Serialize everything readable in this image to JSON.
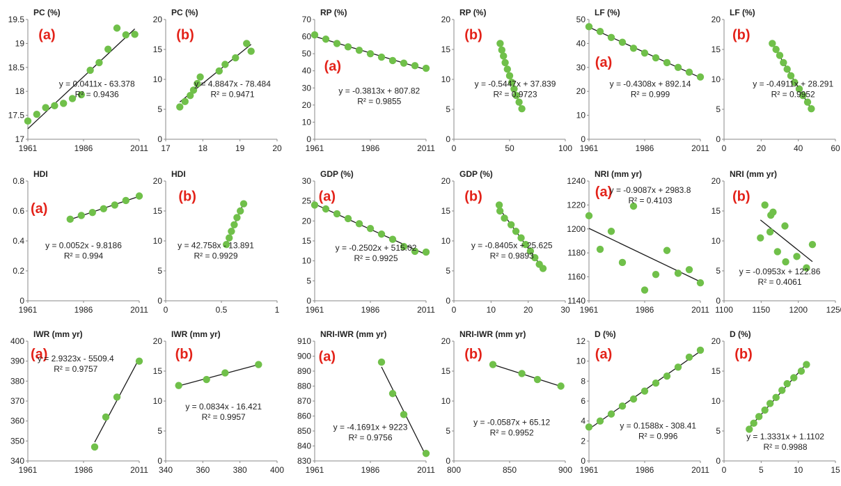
{
  "style": {
    "point_color": "#70c04a",
    "line_color": "#1a1a1a",
    "tag_color": "#e32219",
    "axis_color": "#888888"
  },
  "chart_data": [
    {
      "type": "scatter",
      "title": "PC (%)",
      "tag": "(a)",
      "x": [
        1961,
        1965,
        1969,
        1973,
        1977,
        1981,
        1985,
        1989,
        1993,
        1997,
        2001,
        2005,
        2009
      ],
      "y": [
        17.38,
        17.52,
        17.66,
        17.7,
        17.75,
        17.85,
        17.93,
        18.44,
        18.6,
        18.88,
        19.32,
        19.18,
        19.19
      ],
      "xlim": [
        1961,
        2011
      ],
      "ylim": [
        17,
        19.5
      ],
      "xticks": [
        "1961",
        "1986",
        "2011"
      ],
      "yticks": [
        "17",
        "17.5",
        "18",
        "18.5",
        "19",
        "19.5"
      ],
      "equation": "y = 0.0411x - 63.378",
      "r2": "R² = 0.9436"
    },
    {
      "type": "scatter",
      "title": "PC (%)",
      "tag": "(b)",
      "x": [
        17.38,
        17.52,
        17.66,
        17.75,
        17.85,
        17.93,
        18.44,
        18.6,
        18.88,
        19.18,
        19.3
      ],
      "y": [
        5.4,
        6.3,
        7.3,
        8.2,
        9.3,
        10.4,
        11.4,
        12.5,
        13.6,
        16,
        14.7
      ],
      "xlim": [
        17,
        20
      ],
      "ylim": [
        0,
        20
      ],
      "xticks": [
        "17",
        "18",
        "19",
        "20"
      ],
      "yticks": [
        "0",
        "5",
        "10",
        "15",
        "20"
      ],
      "equation": "y = 4.8847x - 78.484",
      "r2": "R² = 0.9471"
    },
    {
      "type": "scatter",
      "title": "RP (%)",
      "tag": "(a)",
      "x": [
        1961,
        1966,
        1971,
        1976,
        1981,
        1986,
        1991,
        1996,
        2001,
        2006,
        2011
      ],
      "y": [
        61,
        58.5,
        56,
        54,
        52,
        50,
        48,
        46,
        44.5,
        43,
        41.5
      ],
      "xlim": [
        1961,
        2011
      ],
      "ylim": [
        0,
        70
      ],
      "xticks": [
        "1961",
        "1986",
        "2011"
      ],
      "yticks": [
        "0",
        "10",
        "20",
        "30",
        "40",
        "50",
        "60",
        "70"
      ],
      "equation": "y = -0.3813x + 807.82",
      "r2": "R² = 0.9855"
    },
    {
      "type": "scatter",
      "title": "RP (%)",
      "tag": "(b)",
      "x": [
        41.5,
        43,
        44.5,
        46,
        48,
        50,
        52,
        54,
        56,
        58.5,
        61
      ],
      "y": [
        16,
        14.9,
        13.9,
        12.8,
        11.7,
        10.6,
        9.5,
        8.4,
        7.3,
        6.2,
        5.1
      ],
      "xlim": [
        0,
        100
      ],
      "ylim": [
        0,
        20
      ],
      "xticks": [
        "0",
        "50",
        "100"
      ],
      "yticks": [
        "0",
        "5",
        "10",
        "15",
        "20"
      ],
      "equation": "y = -0.5447x + 37.839",
      "r2": "R² = 0.9723"
    },
    {
      "type": "scatter",
      "title": "LF (%)",
      "tag": "(a)",
      "x": [
        1961,
        1966,
        1971,
        1976,
        1981,
        1986,
        1991,
        1996,
        2001,
        2006,
        2011
      ],
      "y": [
        47,
        45,
        42.5,
        40.5,
        38,
        36,
        34,
        32,
        30,
        28,
        26
      ],
      "xlim": [
        1961,
        2011
      ],
      "ylim": [
        0,
        50
      ],
      "xticks": [
        "1961",
        "1986",
        "2011"
      ],
      "yticks": [
        "0",
        "10",
        "20",
        "30",
        "40",
        "50"
      ],
      "equation": "y = -0.4308x + 892.14",
      "r2": "R² = 0.999"
    },
    {
      "type": "scatter",
      "title": "LF (%)",
      "tag": "(b)",
      "x": [
        26,
        28,
        30,
        32,
        34,
        36,
        38,
        40.5,
        42.5,
        45,
        47
      ],
      "y": [
        16,
        15,
        14,
        12.8,
        11.7,
        10.6,
        9.5,
        8.4,
        7.3,
        6.2,
        5.1
      ],
      "xlim": [
        0,
        60
      ],
      "ylim": [
        0,
        20
      ],
      "xticks": [
        "0",
        "20",
        "40",
        "60"
      ],
      "yticks": [
        "0",
        "5",
        "10",
        "15",
        "20"
      ],
      "equation": "y = -0.4911x + 28.291",
      "r2": "R² = 0.9952"
    },
    {
      "type": "scatter",
      "title": "HDI",
      "tag": "(a)",
      "x": [
        1980,
        1985,
        1990,
        1995,
        2000,
        2005,
        2011
      ],
      "y": [
        0.545,
        0.57,
        0.59,
        0.615,
        0.64,
        0.67,
        0.7
      ],
      "xlim": [
        1961,
        2011
      ],
      "ylim": [
        0,
        0.8
      ],
      "xticks": [
        "1961",
        "1986",
        "2011"
      ],
      "yticks": [
        "0",
        "0.2",
        "0.4",
        "0.6",
        "0.8"
      ],
      "equation": "y = 0.0052x - 9.8186",
      "r2": "R² = 0.994"
    },
    {
      "type": "scatter",
      "title": "HDI",
      "tag": "(b)",
      "x": [
        0.545,
        0.57,
        0.59,
        0.615,
        0.64,
        0.67,
        0.7
      ],
      "y": [
        9.4,
        10.5,
        11.6,
        12.7,
        13.9,
        15,
        16.2
      ],
      "xlim": [
        0,
        1
      ],
      "ylim": [
        0,
        20
      ],
      "xticks": [
        "0",
        "0.5",
        "1"
      ],
      "yticks": [
        "0",
        "5",
        "10",
        "15",
        "20"
      ],
      "equation": "y = 42.758x - 13.891",
      "r2": "R² = 0.9929"
    },
    {
      "type": "scatter",
      "title": "GDP (%)",
      "tag": "(a)",
      "x": [
        1961,
        1966,
        1971,
        1976,
        1981,
        1986,
        1991,
        1996,
        2001,
        2006,
        2011
      ],
      "y": [
        24,
        23,
        21.8,
        20.6,
        19.3,
        18.1,
        16.7,
        15.4,
        13.6,
        12.4,
        12.2
      ],
      "xlim": [
        1961,
        2011
      ],
      "ylim": [
        0,
        30
      ],
      "xticks": [
        "1961",
        "1986",
        "2011"
      ],
      "yticks": [
        "0",
        "5",
        "10",
        "15",
        "20",
        "25",
        "30"
      ],
      "equation": "y = -0.2502x + 515.02",
      "r2": "R² = 0.9925"
    },
    {
      "type": "scatter",
      "title": "GDP (%)",
      "tag": "(b)",
      "x": [
        12.2,
        12.4,
        13.6,
        15.4,
        16.7,
        18.1,
        19.3,
        20.6,
        21.8,
        23,
        24
      ],
      "y": [
        16,
        15,
        13.8,
        12.7,
        11.6,
        10.5,
        9.4,
        8.3,
        7.2,
        6.1,
        5.4
      ],
      "xlim": [
        0,
        30
      ],
      "ylim": [
        0,
        20
      ],
      "xticks": [
        "0",
        "10",
        "20",
        "30"
      ],
      "yticks": [
        "0",
        "5",
        "10",
        "15",
        "20"
      ],
      "equation": "y = -0.8405x + 25.625",
      "r2": "R² = 0.9893"
    },
    {
      "type": "scatter",
      "title": "NRI (mm yr)",
      "tag": "(a)",
      "x": [
        1961,
        1966,
        1971,
        1976,
        1981,
        1986,
        1991,
        1996,
        2001,
        2006,
        2011
      ],
      "y": [
        1211,
        1183,
        1198,
        1172,
        1219,
        1149,
        1162,
        1182,
        1163,
        1166,
        1155
      ],
      "xlim": [
        1961,
        2011
      ],
      "ylim": [
        1140,
        1240
      ],
      "xticks": [
        "1961",
        "1986",
        "2011"
      ],
      "yticks": [
        "1140",
        "1160",
        "1180",
        "1200",
        "1220",
        "1240"
      ],
      "equation": "y = -0.9087x + 2983.8",
      "r2": "R² = 0.4103"
    },
    {
      "type": "scatter",
      "title": "NRI (mm yr)",
      "tag": "(b)",
      "x": [
        1149,
        1155,
        1162,
        1163,
        1166,
        1172,
        1182,
        1183,
        1198,
        1211,
        1219
      ],
      "y": [
        10.5,
        16,
        11.5,
        14.3,
        14.8,
        8.2,
        12.5,
        6.5,
        7.4,
        5.5,
        9.4
      ],
      "xlim": [
        1100,
        1250
      ],
      "ylim": [
        0,
        20
      ],
      "xticks": [
        "1100",
        "1150",
        "1200",
        "1250"
      ],
      "yticks": [
        "0",
        "5",
        "10",
        "15",
        "20"
      ],
      "equation": "y = -0.0953x + 122.86",
      "r2": "R² = 0.4061"
    },
    {
      "type": "scatter",
      "title": "IWR (mm yr)",
      "tag": "(a)",
      "x": [
        1991,
        1996,
        2001,
        2011
      ],
      "y": [
        347,
        362,
        372,
        390
      ],
      "xlim": [
        1961,
        2011
      ],
      "ylim": [
        340,
        400
      ],
      "xticks": [
        "1961",
        "1986",
        "2011"
      ],
      "yticks": [
        "340",
        "350",
        "360",
        "370",
        "380",
        "390",
        "400"
      ],
      "equation": "y = 2.9323x - 5509.4",
      "r2": "R² = 0.9757"
    },
    {
      "type": "scatter",
      "title": "IWR (mm yr)",
      "tag": "(b)",
      "x": [
        347,
        362,
        372,
        390
      ],
      "y": [
        12.6,
        13.6,
        14.7,
        16.1
      ],
      "xlim": [
        340,
        400
      ],
      "ylim": [
        0,
        20
      ],
      "xticks": [
        "340",
        "360",
        "380",
        "400"
      ],
      "yticks": [
        "0",
        "5",
        "10",
        "15",
        "20"
      ],
      "equation": "y = 0.0834x - 16.421",
      "r2": "R² = 0.9957"
    },
    {
      "type": "scatter",
      "title": "NRI-IWR (mm yr)",
      "tag": "(a)",
      "x": [
        1991,
        1996,
        2001,
        2011
      ],
      "y": [
        896,
        875,
        861,
        835
      ],
      "xlim": [
        1961,
        2011
      ],
      "ylim": [
        830,
        910
      ],
      "xticks": [
        "1961",
        "1986",
        "2011"
      ],
      "yticks": [
        "830",
        "840",
        "850",
        "860",
        "870",
        "880",
        "890",
        "900",
        "910"
      ],
      "equation": "y = -4.1691x + 9223",
      "r2": "R² = 0.9756"
    },
    {
      "type": "scatter",
      "title": "NRI-IWR (mm yr)",
      "tag": "(b)",
      "x": [
        835,
        861,
        875,
        896
      ],
      "y": [
        16.1,
        14.6,
        13.6,
        12.5
      ],
      "xlim": [
        800,
        900
      ],
      "ylim": [
        0,
        20
      ],
      "xticks": [
        "800",
        "850",
        "900"
      ],
      "yticks": [
        "0",
        "5",
        "10",
        "15",
        "20"
      ],
      "equation": "y = -0.0587x + 65.12",
      "r2": "R² = 0.9952"
    },
    {
      "type": "scatter",
      "title": "D (%)",
      "tag": "(a)",
      "x": [
        1961,
        1966,
        1971,
        1976,
        1981,
        1986,
        1991,
        1996,
        2001,
        2006,
        2011
      ],
      "y": [
        3.4,
        4,
        4.7,
        5.5,
        6.2,
        7,
        7.8,
        8.5,
        9.4,
        10.4,
        11.1
      ],
      "xlim": [
        1961,
        2011
      ],
      "ylim": [
        0,
        12
      ],
      "xticks": [
        "1961",
        "1986",
        "2011"
      ],
      "yticks": [
        "0",
        "2",
        "4",
        "6",
        "8",
        "10",
        "12"
      ],
      "equation": "y = 0.1588x - 308.41",
      "r2": "R² = 0.996"
    },
    {
      "type": "scatter",
      "title": "D (%)",
      "tag": "(b)",
      "x": [
        3.4,
        4,
        4.7,
        5.5,
        6.2,
        7,
        7.8,
        8.5,
        9.4,
        10.4,
        11.1
      ],
      "y": [
        5.3,
        6.3,
        7.4,
        8.5,
        9.6,
        10.6,
        11.8,
        12.9,
        13.9,
        15,
        16.1
      ],
      "xlim": [
        0,
        15
      ],
      "ylim": [
        0,
        20
      ],
      "xticks": [
        "0",
        "5",
        "10",
        "15"
      ],
      "yticks": [
        "0",
        "5",
        "10",
        "15",
        "20"
      ],
      "equation": "y = 1.3331x + 1.1102",
      "r2": "R² = 0.9988"
    }
  ]
}
